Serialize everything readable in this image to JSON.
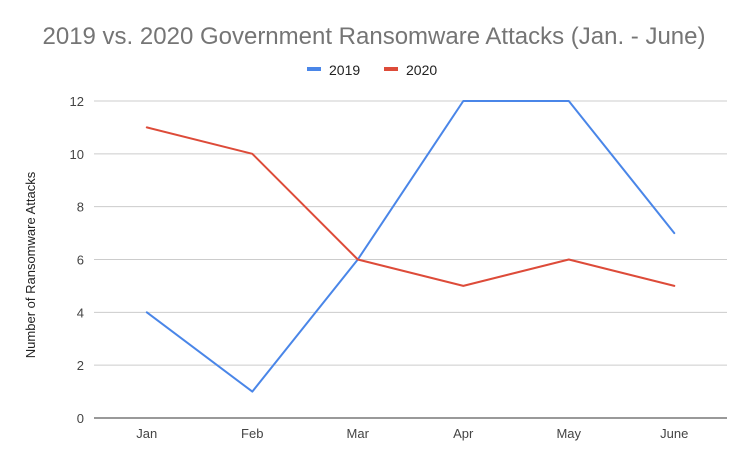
{
  "chart_data": {
    "type": "line",
    "title": "2019 vs. 2020 Government Ransomware Attacks (Jan. - June)",
    "xlabel": "",
    "ylabel": "Number of Ransomware Attacks",
    "categories": [
      "Jan",
      "Feb",
      "Mar",
      "Apr",
      "May",
      "June"
    ],
    "ylim": [
      0,
      12
    ],
    "yticks": [
      0,
      2,
      4,
      6,
      8,
      10,
      12
    ],
    "grid": true,
    "legend_position": "top-center",
    "series": [
      {
        "name": "2019",
        "color": "#4a86e8",
        "values": [
          4,
          1,
          6,
          12,
          12,
          7
        ]
      },
      {
        "name": "2020",
        "color": "#dd4b39",
        "values": [
          11,
          10,
          6,
          5,
          6,
          5
        ]
      }
    ]
  }
}
